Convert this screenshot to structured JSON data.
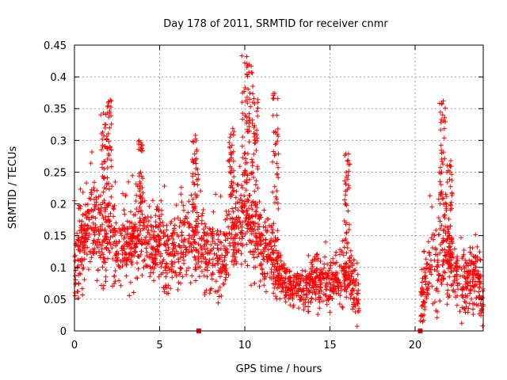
{
  "chart_data": {
    "type": "scatter",
    "title": "Day 178 of 2011, SRMTID for receiver cnmr",
    "xlabel": "GPS time / hours",
    "ylabel": "SRMTID / TECUs",
    "xlim": [
      0,
      24
    ],
    "ylim": [
      0,
      0.45
    ],
    "x_ticks": [
      0,
      5,
      10,
      15,
      20
    ],
    "x_tick_labels": [
      "0",
      "5",
      "10",
      "15",
      "20"
    ],
    "y_ticks": [
      0,
      0.05,
      0.1,
      0.15,
      0.2,
      0.25,
      0.3,
      0.35,
      0.4,
      0.45
    ],
    "y_tick_labels": [
      "0",
      "0.05",
      "0.1",
      "0.15",
      "0.2",
      "0.25",
      "0.3",
      "0.35",
      "0.4",
      "0.45"
    ],
    "grid": true,
    "marker": "+",
    "color": "#ff0000",
    "data_gap_hours": [
      16.7,
      20.3
    ],
    "envelope": {
      "x": [
        0,
        0.3,
        0.7,
        1.0,
        1.5,
        1.8,
        2.0,
        2.3,
        2.7,
        3.0,
        3.5,
        3.9,
        4.5,
        5.0,
        5.5,
        6.0,
        6.5,
        7.0,
        7.4,
        8.0,
        8.5,
        9.0,
        9.4,
        9.7,
        10.0,
        10.2,
        10.5,
        10.8,
        11.2,
        11.6,
        12.0,
        12.5,
        13.0,
        13.5,
        14.0,
        14.5,
        15.0,
        15.5,
        16.0,
        16.3,
        16.7,
        20.3,
        20.7,
        21.0,
        21.3,
        21.6,
        21.9,
        22.3,
        22.8,
        23.2,
        23.6,
        24.0
      ],
      "median": [
        0.09,
        0.13,
        0.15,
        0.16,
        0.15,
        0.12,
        0.17,
        0.14,
        0.12,
        0.13,
        0.14,
        0.15,
        0.14,
        0.13,
        0.12,
        0.13,
        0.14,
        0.15,
        0.12,
        0.12,
        0.12,
        0.13,
        0.15,
        0.17,
        0.16,
        0.17,
        0.15,
        0.14,
        0.13,
        0.12,
        0.09,
        0.07,
        0.07,
        0.06,
        0.08,
        0.08,
        0.07,
        0.08,
        0.09,
        0.07,
        0.04,
        0.04,
        0.08,
        0.11,
        0.1,
        0.12,
        0.11,
        0.09,
        0.07,
        0.08,
        0.1,
        0.04
      ],
      "spread": [
        0.06,
        0.06,
        0.06,
        0.07,
        0.07,
        0.07,
        0.07,
        0.06,
        0.06,
        0.06,
        0.06,
        0.06,
        0.06,
        0.06,
        0.06,
        0.06,
        0.06,
        0.06,
        0.06,
        0.06,
        0.06,
        0.06,
        0.06,
        0.07,
        0.08,
        0.08,
        0.07,
        0.06,
        0.06,
        0.05,
        0.04,
        0.03,
        0.03,
        0.03,
        0.04,
        0.04,
        0.04,
        0.04,
        0.05,
        0.05,
        0.04,
        0.04,
        0.06,
        0.07,
        0.06,
        0.07,
        0.06,
        0.05,
        0.05,
        0.05,
        0.06,
        0.03
      ]
    },
    "spikes": [
      {
        "x": 1.7,
        "peak": 0.35
      },
      {
        "x": 2.0,
        "peak": 0.365
      },
      {
        "x": 3.9,
        "peak": 0.3
      },
      {
        "x": 7.1,
        "peak": 0.315
      },
      {
        "x": 9.2,
        "peak": 0.32
      },
      {
        "x": 10.0,
        "peak": 0.435
      },
      {
        "x": 10.3,
        "peak": 0.42
      },
      {
        "x": 10.6,
        "peak": 0.37
      },
      {
        "x": 11.8,
        "peak": 0.375
      },
      {
        "x": 16.0,
        "peak": 0.28
      },
      {
        "x": 21.6,
        "peak": 0.365
      },
      {
        "x": 22.0,
        "peak": 0.27
      }
    ],
    "marked_points": [
      {
        "x": 7.3,
        "y": 0.0
      },
      {
        "x": 20.3,
        "y": 0.0
      }
    ],
    "point_count": 2600
  }
}
